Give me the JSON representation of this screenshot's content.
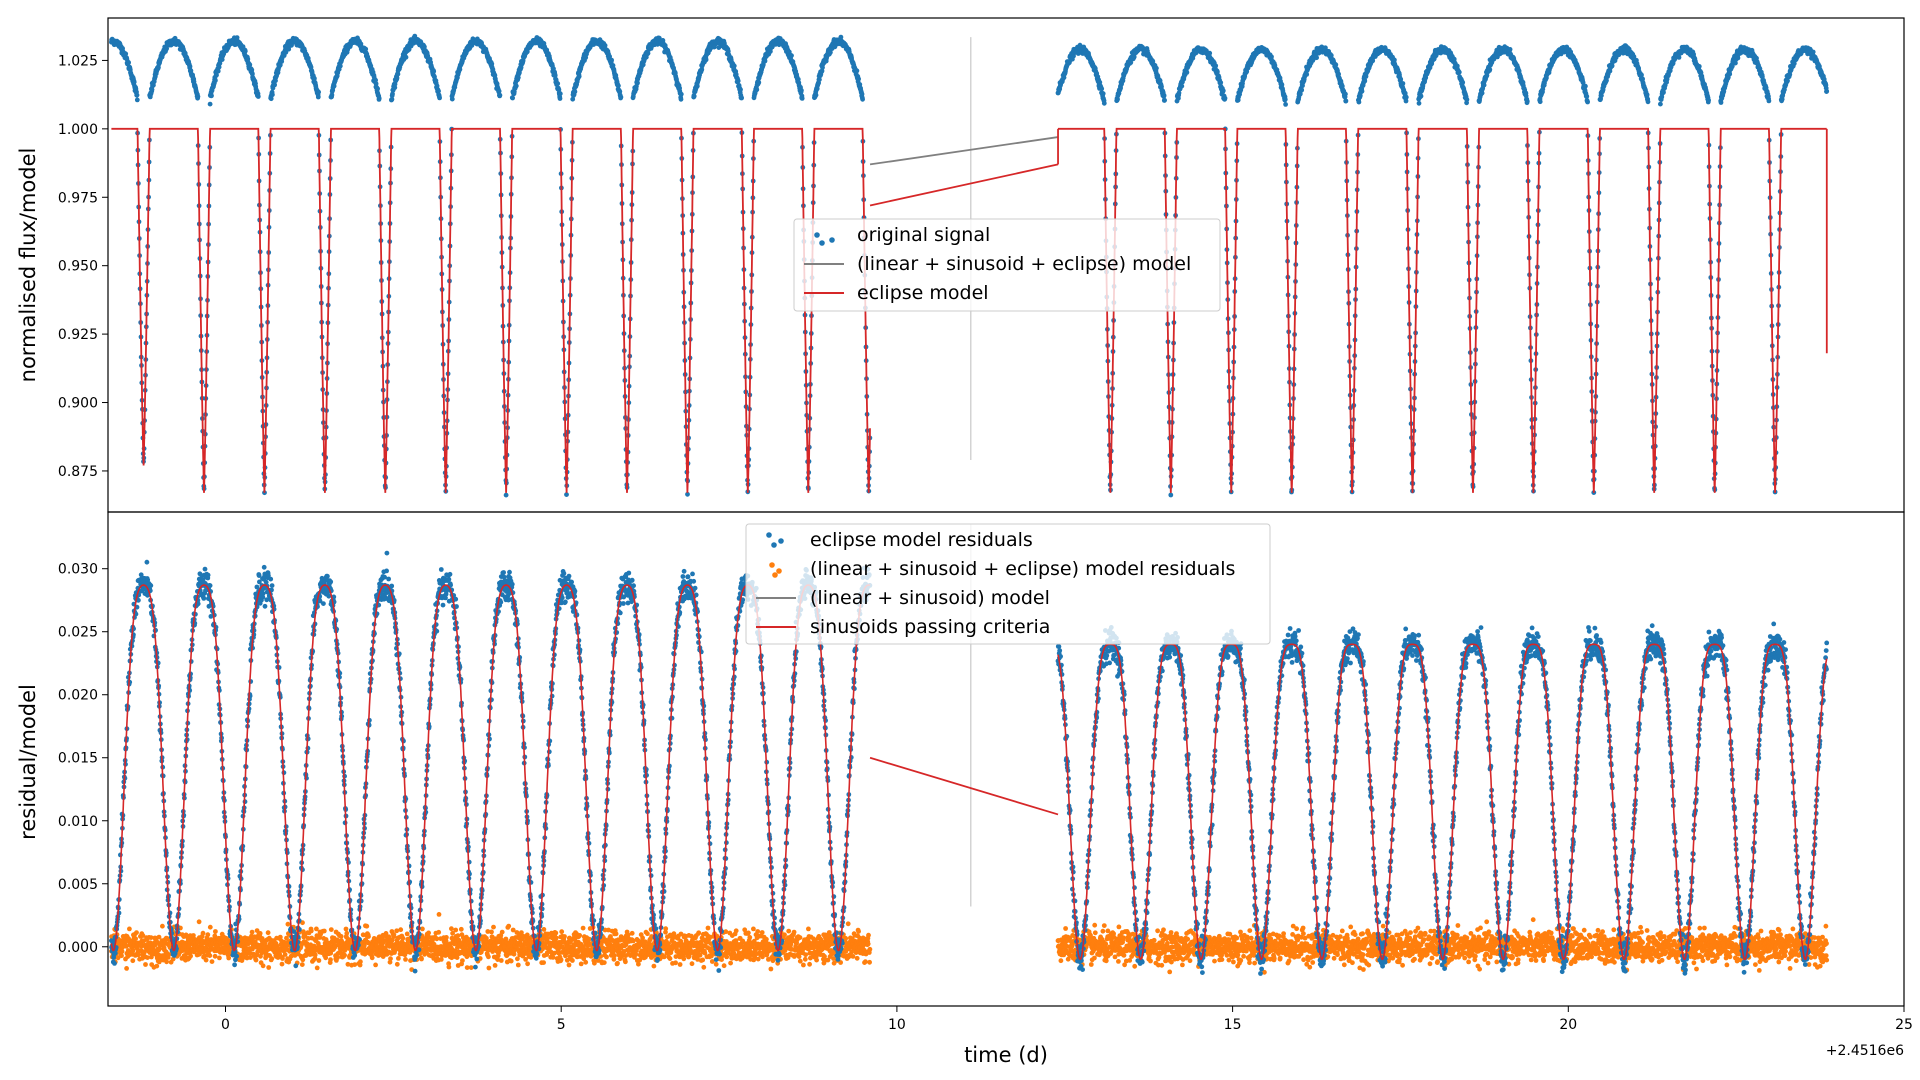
{
  "chart_data": [
    {
      "type": "scatter",
      "title": "",
      "xlabel": "",
      "ylabel": "normalised flux/model",
      "xlim": [
        -1.75,
        25
      ],
      "ylim": [
        0.86,
        1.0405
      ],
      "yticks": [
        0.875,
        0.9,
        0.925,
        0.95,
        0.975,
        1.0,
        1.025
      ],
      "ytick_labels": [
        "0.875",
        "0.900",
        "0.925",
        "0.950",
        "0.975",
        "1.000",
        "1.025"
      ],
      "x_gap": [
        9.6,
        12.4
      ],
      "vline_x": 11.1,
      "eclipse_period": 0.9,
      "eclipse_depths": [
        0.877,
        0.867,
        0.867,
        0.867,
        0.867,
        0.867,
        0.867,
        0.867,
        0.867,
        0.867,
        0.867,
        0.867,
        0.867,
        0.867
      ],
      "gap_model_line": {
        "x": [
          9.6,
          12.4
        ],
        "y": [
          0.987,
          0.997
        ]
      },
      "gap_eclipse_line": {
        "x": [
          9.6,
          12.4
        ],
        "y": [
          0.972,
          0.987
        ]
      },
      "last_point": {
        "x": 23.85,
        "y": 0.918
      },
      "legend": {
        "position": "center",
        "entries": [
          {
            "label": "original signal",
            "kind": "dot",
            "color": "#1f77b4"
          },
          {
            "label": "(linear + sinusoid + eclipse) model",
            "kind": "line",
            "color": "#808080"
          },
          {
            "label": "eclipse model",
            "kind": "line",
            "color": "#d62728"
          }
        ]
      },
      "series": [
        {
          "name": "original signal",
          "kind": "scatter",
          "color": "#1f77b4"
        },
        {
          "name": "(linear + sinusoid + eclipse) model",
          "kind": "line",
          "color": "#808080"
        },
        {
          "name": "eclipse model",
          "kind": "line",
          "color": "#d62728"
        }
      ]
    },
    {
      "type": "scatter",
      "title": "",
      "xlabel": "time (d)",
      "ylabel": "residual/model",
      "xlim": [
        -1.75,
        25
      ],
      "ylim": [
        -0.0047,
        0.0345
      ],
      "xticks": [
        0,
        5,
        10,
        15,
        20,
        25
      ],
      "xtick_labels": [
        "0",
        "5",
        "10",
        "15",
        "20",
        "25"
      ],
      "x_offset_label": "+2.4516e6",
      "yticks": [
        0.0,
        0.005,
        0.01,
        0.015,
        0.02,
        0.025,
        0.03
      ],
      "ytick_labels": [
        "0.000",
        "0.005",
        "0.010",
        "0.015",
        "0.020",
        "0.025",
        "0.030"
      ],
      "x_gap": [
        9.6,
        12.4
      ],
      "vline_x": 11.1,
      "gap_line": {
        "x": [
          9.6,
          12.4
        ],
        "y": [
          0.015,
          0.0105
        ]
      },
      "legend": {
        "position": "upper center",
        "entries": [
          {
            "label": "eclipse model residuals",
            "kind": "dot",
            "color": "#1f77b4"
          },
          {
            "label": "(linear + sinusoid + eclipse) model residuals",
            "kind": "dot",
            "color": "#ff7f0e"
          },
          {
            "label": "(linear + sinusoid) model",
            "kind": "line",
            "color": "#808080"
          },
          {
            "label": "sinusoids passing criteria",
            "kind": "line",
            "color": "#d62728"
          }
        ]
      },
      "series": [
        {
          "name": "eclipse model residuals",
          "kind": "scatter",
          "color": "#1f77b4"
        },
        {
          "name": "(linear + sinusoid + eclipse) model residuals",
          "kind": "scatter",
          "color": "#ff7f0e"
        },
        {
          "name": "(linear + sinusoid) model",
          "kind": "line",
          "color": "#808080"
        },
        {
          "name": "sinusoids passing criteria",
          "kind": "line",
          "color": "#d62728"
        }
      ]
    }
  ]
}
